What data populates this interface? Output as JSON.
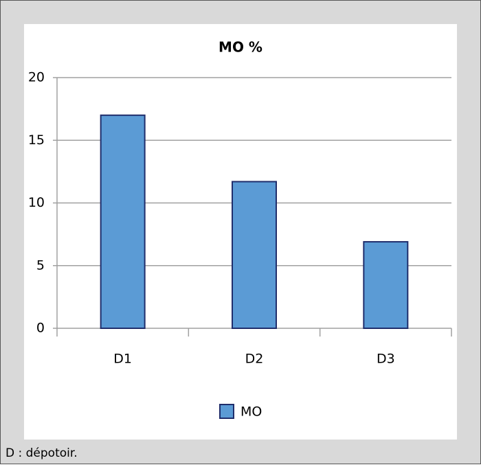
{
  "chart_data": {
    "type": "bar",
    "title": "MO %",
    "categories": [
      "D1",
      "D2",
      "D3"
    ],
    "series": [
      {
        "name": "MO",
        "color": "#5b9bd5",
        "values": [
          17,
          11.7,
          6.9
        ]
      }
    ],
    "ylim": [
      0,
      20
    ],
    "yticks": [
      0,
      5,
      10,
      15,
      20
    ],
    "grid": true,
    "legend": "bottom"
  },
  "footnote": "D : dépotoir."
}
